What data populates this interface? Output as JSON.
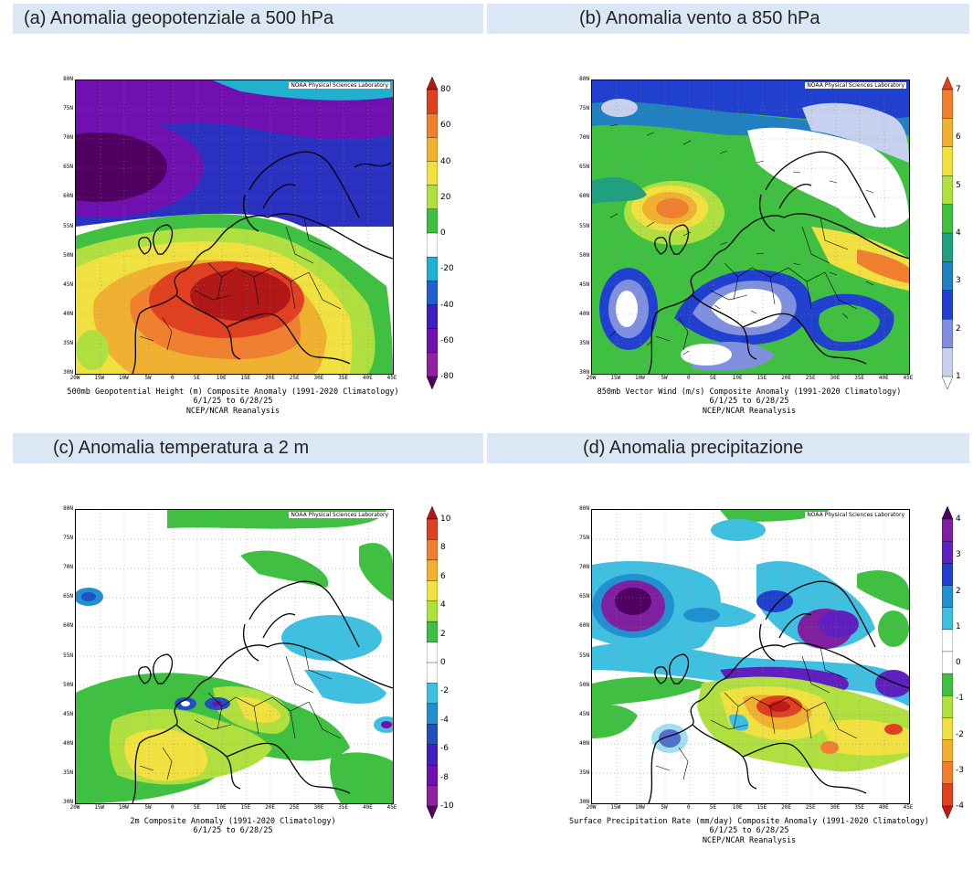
{
  "panels": [
    {
      "title": "(a) Anomalia geopotenziale a 500 hPa",
      "credit": "NOAA Physical Sciences Laboratory",
      "caption1": "500mb Geopotential Height (m) Composite Anomaly (1991-2020 Climatology)",
      "caption2": "6/1/25 to 6/28/25",
      "caption3": "NCEP/NCAR Reanalysis",
      "colorbar_labels": [
        "80",
        "60",
        "40",
        "20",
        "0",
        "-20",
        "-40",
        "-60",
        "-80"
      ],
      "colorbar_colors": [
        "#b01818",
        "#e04020",
        "#f08030",
        "#f0b030",
        "#f0e040",
        "#b0e040",
        "#40c040",
        "#ffffff",
        "#20b0d0",
        "#2060d0",
        "#4020c0",
        "#7010b0",
        "#9020a0",
        "#500060"
      ]
    },
    {
      "title": "(b) Anomalia vento a 850 hPa",
      "credit": "NOAA Physical Sciences Laboratory",
      "caption1": "850mb Vector Wind (m/s) Composite Anomaly (1991-2020 Climatology)",
      "caption2": "6/1/25 to 6/28/25",
      "caption3": "NCEP/NCAR Reanalysis",
      "colorbar_labels": [
        "7",
        "6",
        "5",
        "4",
        "3",
        "2",
        "1"
      ],
      "colorbar_colors": [
        "#e04020",
        "#f08030",
        "#f0b030",
        "#f0e040",
        "#b0e040",
        "#40c040",
        "#20a080",
        "#2080c0",
        "#2040d0",
        "#8090e0",
        "#c8d0f0",
        "#ffffff"
      ]
    },
    {
      "title": "(c) Anomalia temperatura a 2 m",
      "credit": "NOAA Physical Sciences Laboratory",
      "caption1": "2m  Composite Anomaly (1991-2020 Climatology)",
      "caption2": "6/1/25 to 6/28/25",
      "caption3": "",
      "colorbar_labels": [
        "10",
        "8",
        "6",
        "4",
        "2",
        "0",
        "-2",
        "-4",
        "-6",
        "-8",
        "-10"
      ],
      "colorbar_colors": [
        "#b01818",
        "#e04020",
        "#f08030",
        "#f0b030",
        "#f0e040",
        "#b0e040",
        "#40c040",
        "#ffffff",
        "#ffffff",
        "#40c0e0",
        "#2090d0",
        "#2050c0",
        "#4020c0",
        "#7010b0",
        "#9020a0",
        "#500060"
      ]
    },
    {
      "title": "(d) Anomalia precipitazione",
      "credit": "NOAA Physical Sciences Laboratory",
      "caption1": "Surface Precipitation Rate (mm/day) Composite Anomaly (1991-2020 Climatology)",
      "caption2": "6/1/25 to 6/28/25",
      "caption3": "NCEP/NCAR Reanalysis",
      "colorbar_labels": [
        "4",
        "3",
        "2",
        "1",
        "0",
        "-1",
        "-2",
        "-3",
        "-4"
      ],
      "colorbar_colors": [
        "#500060",
        "#8020a0",
        "#6020c0",
        "#2040d0",
        "#2090d0",
        "#40c0e0",
        "#ffffff",
        "#ffffff",
        "#40c040",
        "#b0e040",
        "#f0e040",
        "#f0b030",
        "#f08030",
        "#e04020",
        "#c01818"
      ]
    }
  ],
  "lat_labels": [
    "80N",
    "75N",
    "70N",
    "65N",
    "60N",
    "55N",
    "50N",
    "45N",
    "40N",
    "35N",
    "30N"
  ],
  "lon_labels": [
    "20W",
    "15W",
    "10W",
    "5W",
    "0",
    "5E",
    "10E",
    "15E",
    "20E",
    "25E",
    "30E",
    "35E",
    "40E",
    "45E"
  ]
}
